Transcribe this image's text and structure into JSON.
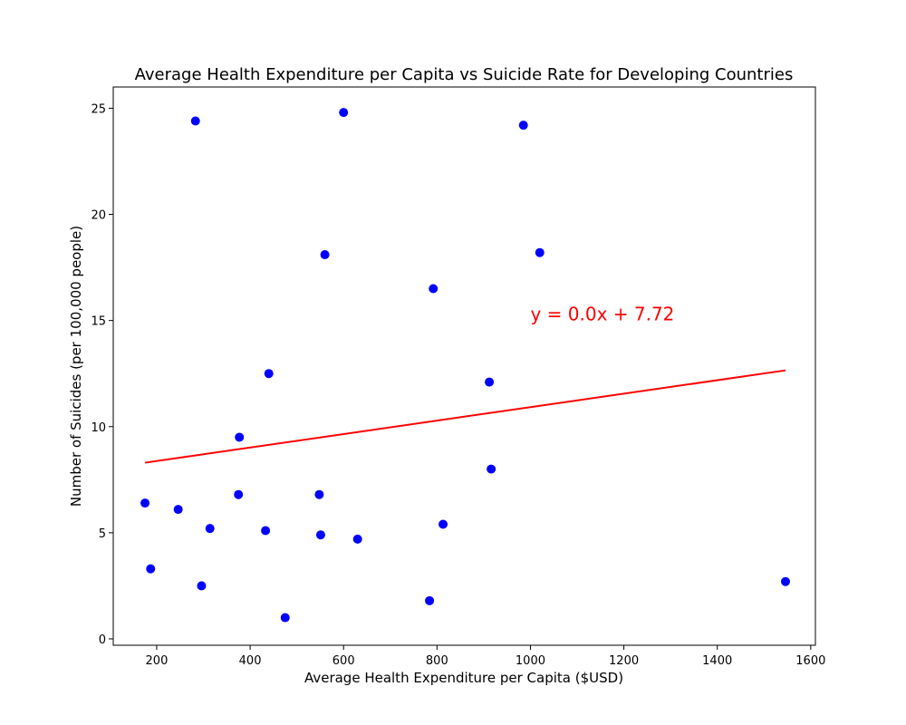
{
  "chart_data": {
    "type": "scatter",
    "title": "Average Health Expenditure per Capita vs Suicide Rate for Developing Countries",
    "xlabel": "Average Health Expenditure per Capita ($USD)",
    "ylabel": "Number of Suicides (per 100,000 people)",
    "xlim": [
      107,
      1610
    ],
    "ylim": [
      -0.3,
      26.0
    ],
    "xticks": [
      200,
      400,
      600,
      800,
      1000,
      1200,
      1400,
      1600
    ],
    "yticks": [
      0,
      5,
      10,
      15,
      20,
      25
    ],
    "grid": false,
    "point_color": "#0000ff",
    "line_color": "#ff0000",
    "points": [
      {
        "x": 283,
        "y": 24.4
      },
      {
        "x": 600,
        "y": 24.8
      },
      {
        "x": 985,
        "y": 24.2
      },
      {
        "x": 560,
        "y": 18.1
      },
      {
        "x": 1020,
        "y": 18.2
      },
      {
        "x": 792,
        "y": 16.5
      },
      {
        "x": 440,
        "y": 12.5
      },
      {
        "x": 912,
        "y": 12.1
      },
      {
        "x": 377,
        "y": 9.5
      },
      {
        "x": 916,
        "y": 8.0
      },
      {
        "x": 175,
        "y": 6.4
      },
      {
        "x": 375,
        "y": 6.8
      },
      {
        "x": 548,
        "y": 6.8
      },
      {
        "x": 246,
        "y": 6.1
      },
      {
        "x": 314,
        "y": 5.2
      },
      {
        "x": 433,
        "y": 5.1
      },
      {
        "x": 813,
        "y": 5.4
      },
      {
        "x": 551,
        "y": 4.9
      },
      {
        "x": 630,
        "y": 4.7
      },
      {
        "x": 187,
        "y": 3.3
      },
      {
        "x": 296,
        "y": 2.5
      },
      {
        "x": 1546,
        "y": 2.7
      },
      {
        "x": 784,
        "y": 1.8
      },
      {
        "x": 475,
        "y": 1.0
      }
    ],
    "regression": {
      "x": [
        175,
        1546
      ],
      "y": [
        8.3,
        12.65
      ],
      "equation": "y = 0.0x + 7.72",
      "annotation_x": 1000,
      "annotation_y": 15.0
    }
  }
}
